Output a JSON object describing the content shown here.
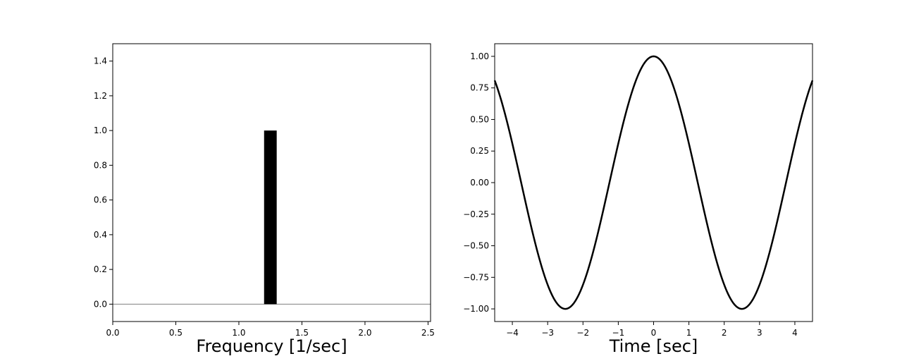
{
  "chart_data": [
    {
      "type": "bar",
      "title": "",
      "xlabel": "Frequency [1/sec]",
      "ylabel": "",
      "xlim": [
        0,
        2.52
      ],
      "ylim": [
        -0.1,
        1.5
      ],
      "x_ticks": [
        0.0,
        0.5,
        1.0,
        1.5,
        2.0,
        2.5
      ],
      "x_tick_labels": [
        "0.0",
        "0.5",
        "1.0",
        "1.5",
        "2.0",
        "2.5"
      ],
      "y_ticks": [
        0.0,
        0.2,
        0.4,
        0.6,
        0.8,
        1.0,
        1.2,
        1.4
      ],
      "y_tick_labels": [
        "0.0",
        "0.2",
        "0.4",
        "0.6",
        "0.8",
        "1.0",
        "1.2",
        "1.4"
      ],
      "bars": [
        {
          "x": 1.25,
          "width": 0.1,
          "value": 1.0
        }
      ],
      "baseline": 0,
      "bar_color": "#000000",
      "baseline_color": "#808080",
      "grid": false
    },
    {
      "type": "line",
      "title": "",
      "xlabel": "Time [sec]",
      "ylabel": "",
      "xlim": [
        -4.5,
        4.5
      ],
      "ylim": [
        -1.1,
        1.1
      ],
      "x_ticks": [
        -4,
        -3,
        -2,
        -1,
        0,
        1,
        2,
        3,
        4
      ],
      "x_tick_labels": [
        "−4",
        "−3",
        "−2",
        "−1",
        "0",
        "1",
        "2",
        "3",
        "4"
      ],
      "y_ticks": [
        -1.0,
        -0.75,
        -0.5,
        -0.25,
        0.0,
        0.25,
        0.5,
        0.75,
        1.0
      ],
      "y_tick_labels": [
        "−1.00",
        "−0.75",
        "−0.50",
        "−0.25",
        "0.00",
        "0.25",
        "0.50",
        "0.75",
        "1.00"
      ],
      "series": [
        {
          "function": "y = cos(2π · 0.2 · t)",
          "frequency": 0.2,
          "x": [
            -4.5,
            -4.25,
            -4.0,
            -3.75,
            -3.5,
            -3.25,
            -3.0,
            -2.75,
            -2.5,
            -2.25,
            -2.0,
            -1.75,
            -1.5,
            -1.25,
            -1.0,
            -0.75,
            -0.5,
            -0.25,
            0.0,
            0.25,
            0.5,
            0.75,
            1.0,
            1.25,
            1.5,
            1.75,
            2.0,
            2.25,
            2.5,
            2.75,
            3.0,
            3.25,
            3.5,
            3.75,
            4.0,
            4.25,
            4.5
          ],
          "y": [
            0.809,
            0.588,
            0.309,
            0.0,
            -0.309,
            -0.588,
            -0.809,
            -0.951,
            -1.0,
            -0.951,
            -0.809,
            -0.588,
            -0.309,
            0.0,
            0.309,
            0.588,
            0.809,
            0.951,
            1.0,
            0.951,
            0.809,
            0.588,
            0.309,
            0.0,
            -0.309,
            -0.588,
            -0.809,
            -0.951,
            -1.0,
            -0.951,
            -0.809,
            -0.588,
            -0.309,
            0.0,
            0.309,
            0.588,
            0.809
          ],
          "color": "#000000"
        }
      ],
      "grid": false
    }
  ]
}
